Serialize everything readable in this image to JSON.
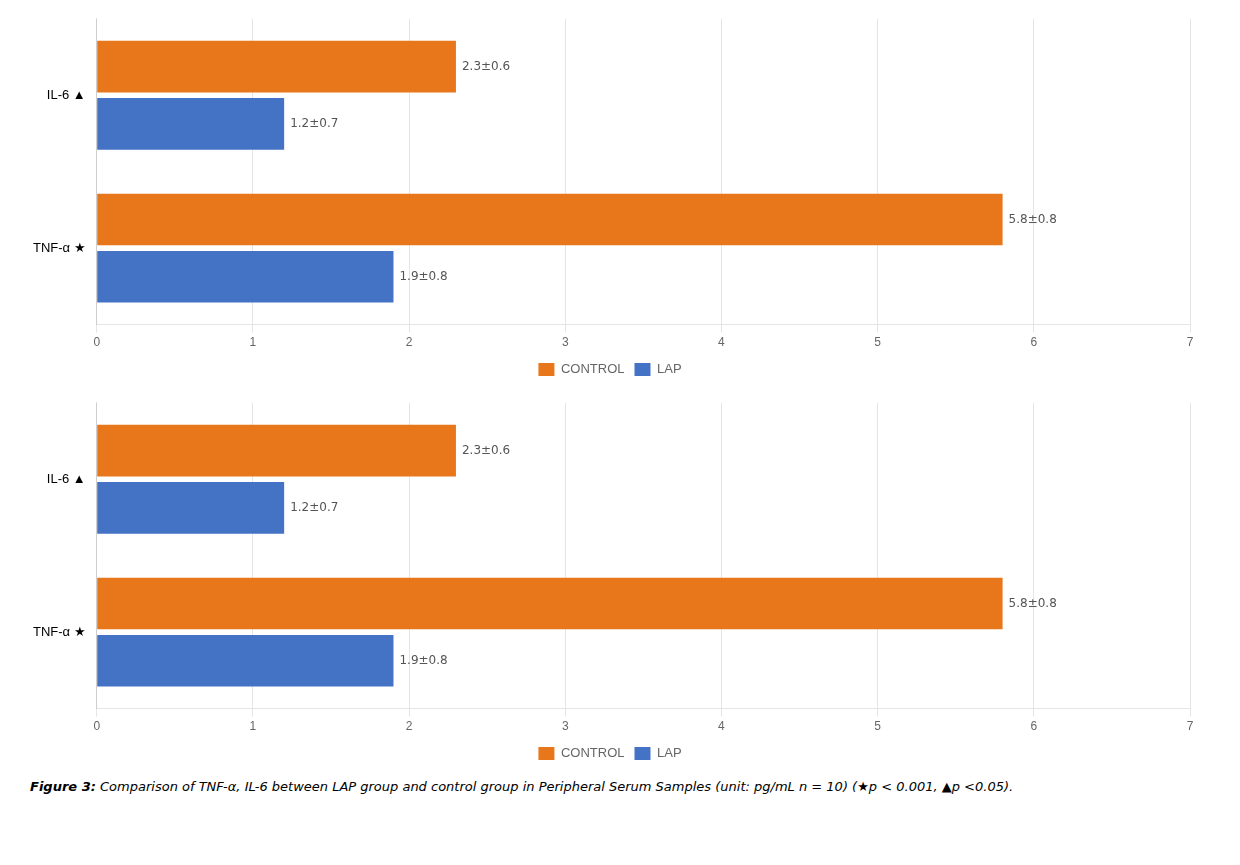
{
  "chart_data": [
    {
      "type": "bar",
      "orientation": "horizontal",
      "categories": [
        "IL-6 ▲",
        "TNF-α ★"
      ],
      "series": [
        {
          "name": "CONTROL",
          "color": "#E8761A",
          "values": [
            2.3,
            5.8
          ],
          "value_labels": [
            "2.3±0.6",
            "5.8±0.8"
          ]
        },
        {
          "name": "LAP",
          "color": "#4472C4",
          "values": [
            1.2,
            1.9
          ],
          "value_labels": [
            "1.2±0.7",
            "1.9±0.8"
          ]
        }
      ],
      "xlim": [
        0,
        7
      ],
      "xticks": [
        0,
        1,
        2,
        3,
        4,
        5,
        6,
        7
      ],
      "grid": true,
      "legend": "bottom",
      "data_labels": true
    },
    {
      "type": "bar",
      "orientation": "horizontal",
      "categories": [
        "IL-6 ▲",
        "TNF-α ★"
      ],
      "series": [
        {
          "name": "CONTROL",
          "color": "#E8761A",
          "values": [
            2.3,
            5.8
          ],
          "value_labels": [
            "2.3±0.6",
            "5.8±0.8"
          ]
        },
        {
          "name": "LAP",
          "color": "#4472C4",
          "values": [
            1.2,
            1.9
          ],
          "value_labels": [
            "1.2±0.7",
            "1.9±0.8"
          ]
        }
      ],
      "xlim": [
        0,
        7
      ],
      "xticks": [
        0,
        1,
        2,
        3,
        4,
        5,
        6,
        7
      ],
      "grid": true,
      "legend": "bottom",
      "data_labels": true
    }
  ],
  "caption": "Figure 3: Comparison of TNF-α, IL-6 between LAP group and control group in Peripheral Serum Samples (unit: pg/mL n = 10) (★p < 0.001, ▲p <0.05)."
}
